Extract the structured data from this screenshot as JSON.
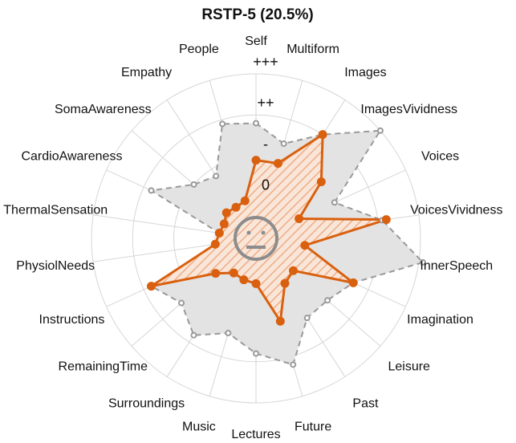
{
  "chart_data": {
    "type": "radar",
    "title": "RSTP-5 (20.5%)",
    "categories": [
      "Self",
      "Multiform",
      "Images",
      "ImagesVividness",
      "Voices",
      "VoicesVividness",
      "InnerSpeech",
      "Imagination",
      "Leisure",
      "Past",
      "Future",
      "Lectures",
      "Music",
      "Surroundings",
      "RemainingTime",
      "Instructions",
      "PhysiolNeeds",
      "ThermalSensation",
      "CardioAwareness",
      "SomaAwareness",
      "Empathy",
      "People"
    ],
    "rlim": [
      0,
      4
    ],
    "rticks": [
      {
        "value": 1,
        "label": "0"
      },
      {
        "value": 2,
        "label": "-"
      },
      {
        "value": 3,
        "label": "++"
      },
      {
        "value": 4,
        "label": "+++"
      }
    ],
    "series": [
      {
        "color": "#999999",
        "fill": "#e3e3e3",
        "values": [
          2.8,
          2.4,
          3.0,
          4.0,
          2.1,
          3.1,
          4.1,
          2.6,
          2.3,
          2.3,
          3.2,
          2.8,
          2.4,
          2.8,
          2.4,
          2.8,
          1.0,
          0.9,
          2.8,
          2.0,
          1.8,
          2.9
        ]
      },
      {
        "color": "#d9600f",
        "fill": "#f2b08a",
        "values": [
          1.9,
          1.9,
          3.0,
          2.1,
          1.15,
          3.2,
          1.2,
          2.6,
          1.2,
          1.3,
          2.1,
          1.1,
          1.05,
          1.0,
          1.3,
          2.8,
          1.0,
          0.9,
          0.85,
          0.95,
          0.9,
          0.95
        ]
      }
    ]
  }
}
